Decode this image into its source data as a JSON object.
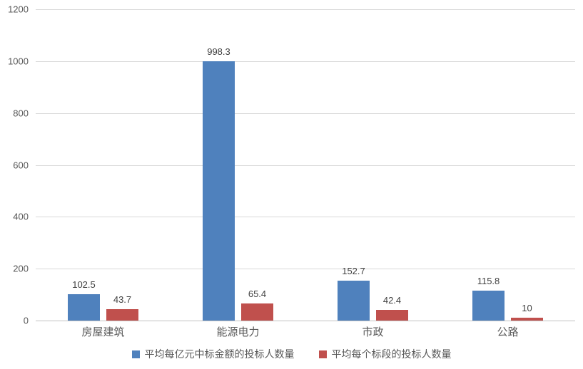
{
  "chart_data": {
    "type": "bar",
    "categories": [
      "房屋建筑",
      "能源电力",
      "市政",
      "公路"
    ],
    "series": [
      {
        "name": "平均每亿元中标金额的投标人数量",
        "color": "#4F81BD",
        "values": [
          102.5,
          998.3,
          152.7,
          115.8
        ],
        "labels": [
          "102.5",
          "998.3",
          "152.7",
          "115.8"
        ]
      },
      {
        "name": "平均每个标段的投标人数量",
        "color": "#C0504D",
        "values": [
          43.7,
          65.4,
          42.4,
          10
        ],
        "labels": [
          "43.7",
          "65.4",
          "42.4",
          "10"
        ]
      }
    ],
    "title": "",
    "xlabel": "",
    "ylabel": "",
    "ylim": [
      0,
      1200
    ],
    "yticks": [
      0,
      200,
      400,
      600,
      800,
      1000,
      1200
    ],
    "grid": true,
    "legend_position": "bottom"
  },
  "style": {
    "background": "#ffffff",
    "gridline_color": "#D9D9D9",
    "axis_line_color": "#C0C0C0",
    "tick_label_color": "#595959",
    "value_label_color": "#3F3F3F",
    "category_label_color": "#595959",
    "legend_text_color": "#595959"
  }
}
